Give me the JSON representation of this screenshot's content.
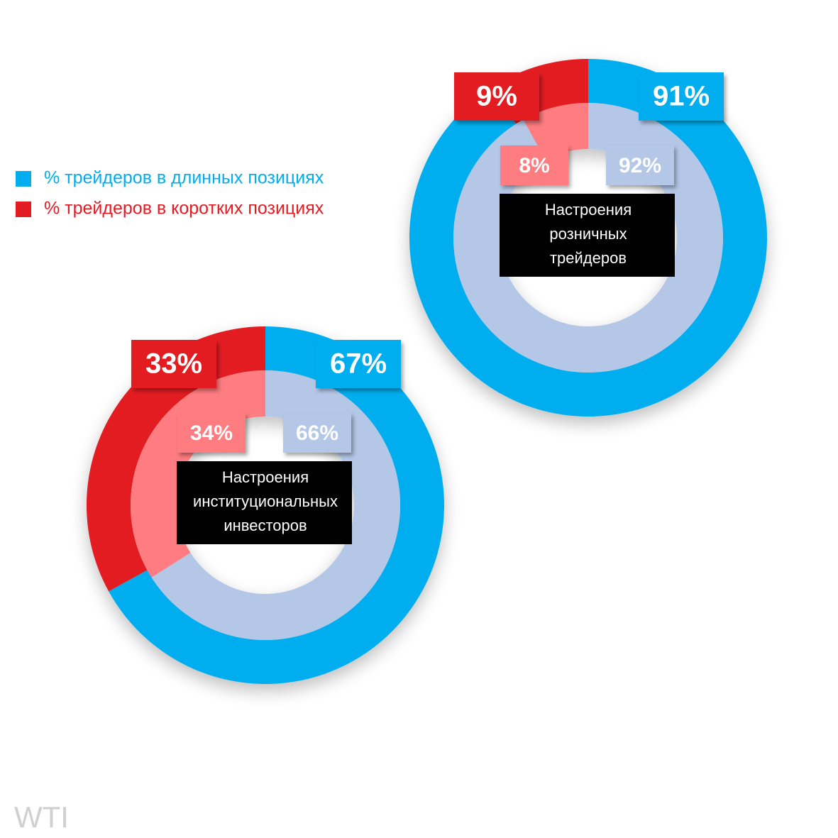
{
  "watermark": "WTI",
  "chart_data": [
    {
      "type": "donut",
      "title": [
        "Настроения",
        "розничных",
        "трейдеров"
      ],
      "categories": [
        "% трейдеров в длинных позициях",
        "% трейдеров в коротких позициях"
      ],
      "legend_colors": [
        "#00aeef",
        "#e31b23"
      ],
      "rings": [
        {
          "values": [
            91,
            9
          ],
          "value_labels": [
            "91%",
            "9%"
          ],
          "colors": [
            "#00aeef",
            "#e31b23"
          ]
        },
        {
          "values": [
            92,
            8
          ],
          "value_labels": [
            "92%",
            "8%"
          ],
          "colors": [
            "#b4c7e7",
            "#ff7c80"
          ]
        }
      ]
    },
    {
      "type": "donut",
      "title": [
        "Настроения",
        "институциональных",
        "инвесторов"
      ],
      "rings": [
        {
          "values": [
            67,
            33
          ],
          "value_labels": [
            "67%",
            "33%"
          ],
          "colors": [
            "#00aeef",
            "#e31b23"
          ]
        },
        {
          "values": [
            66,
            34
          ],
          "value_labels": [
            "66%",
            "34%"
          ],
          "colors": [
            "#b4c7e7",
            "#ff7c80"
          ]
        }
      ]
    }
  ]
}
